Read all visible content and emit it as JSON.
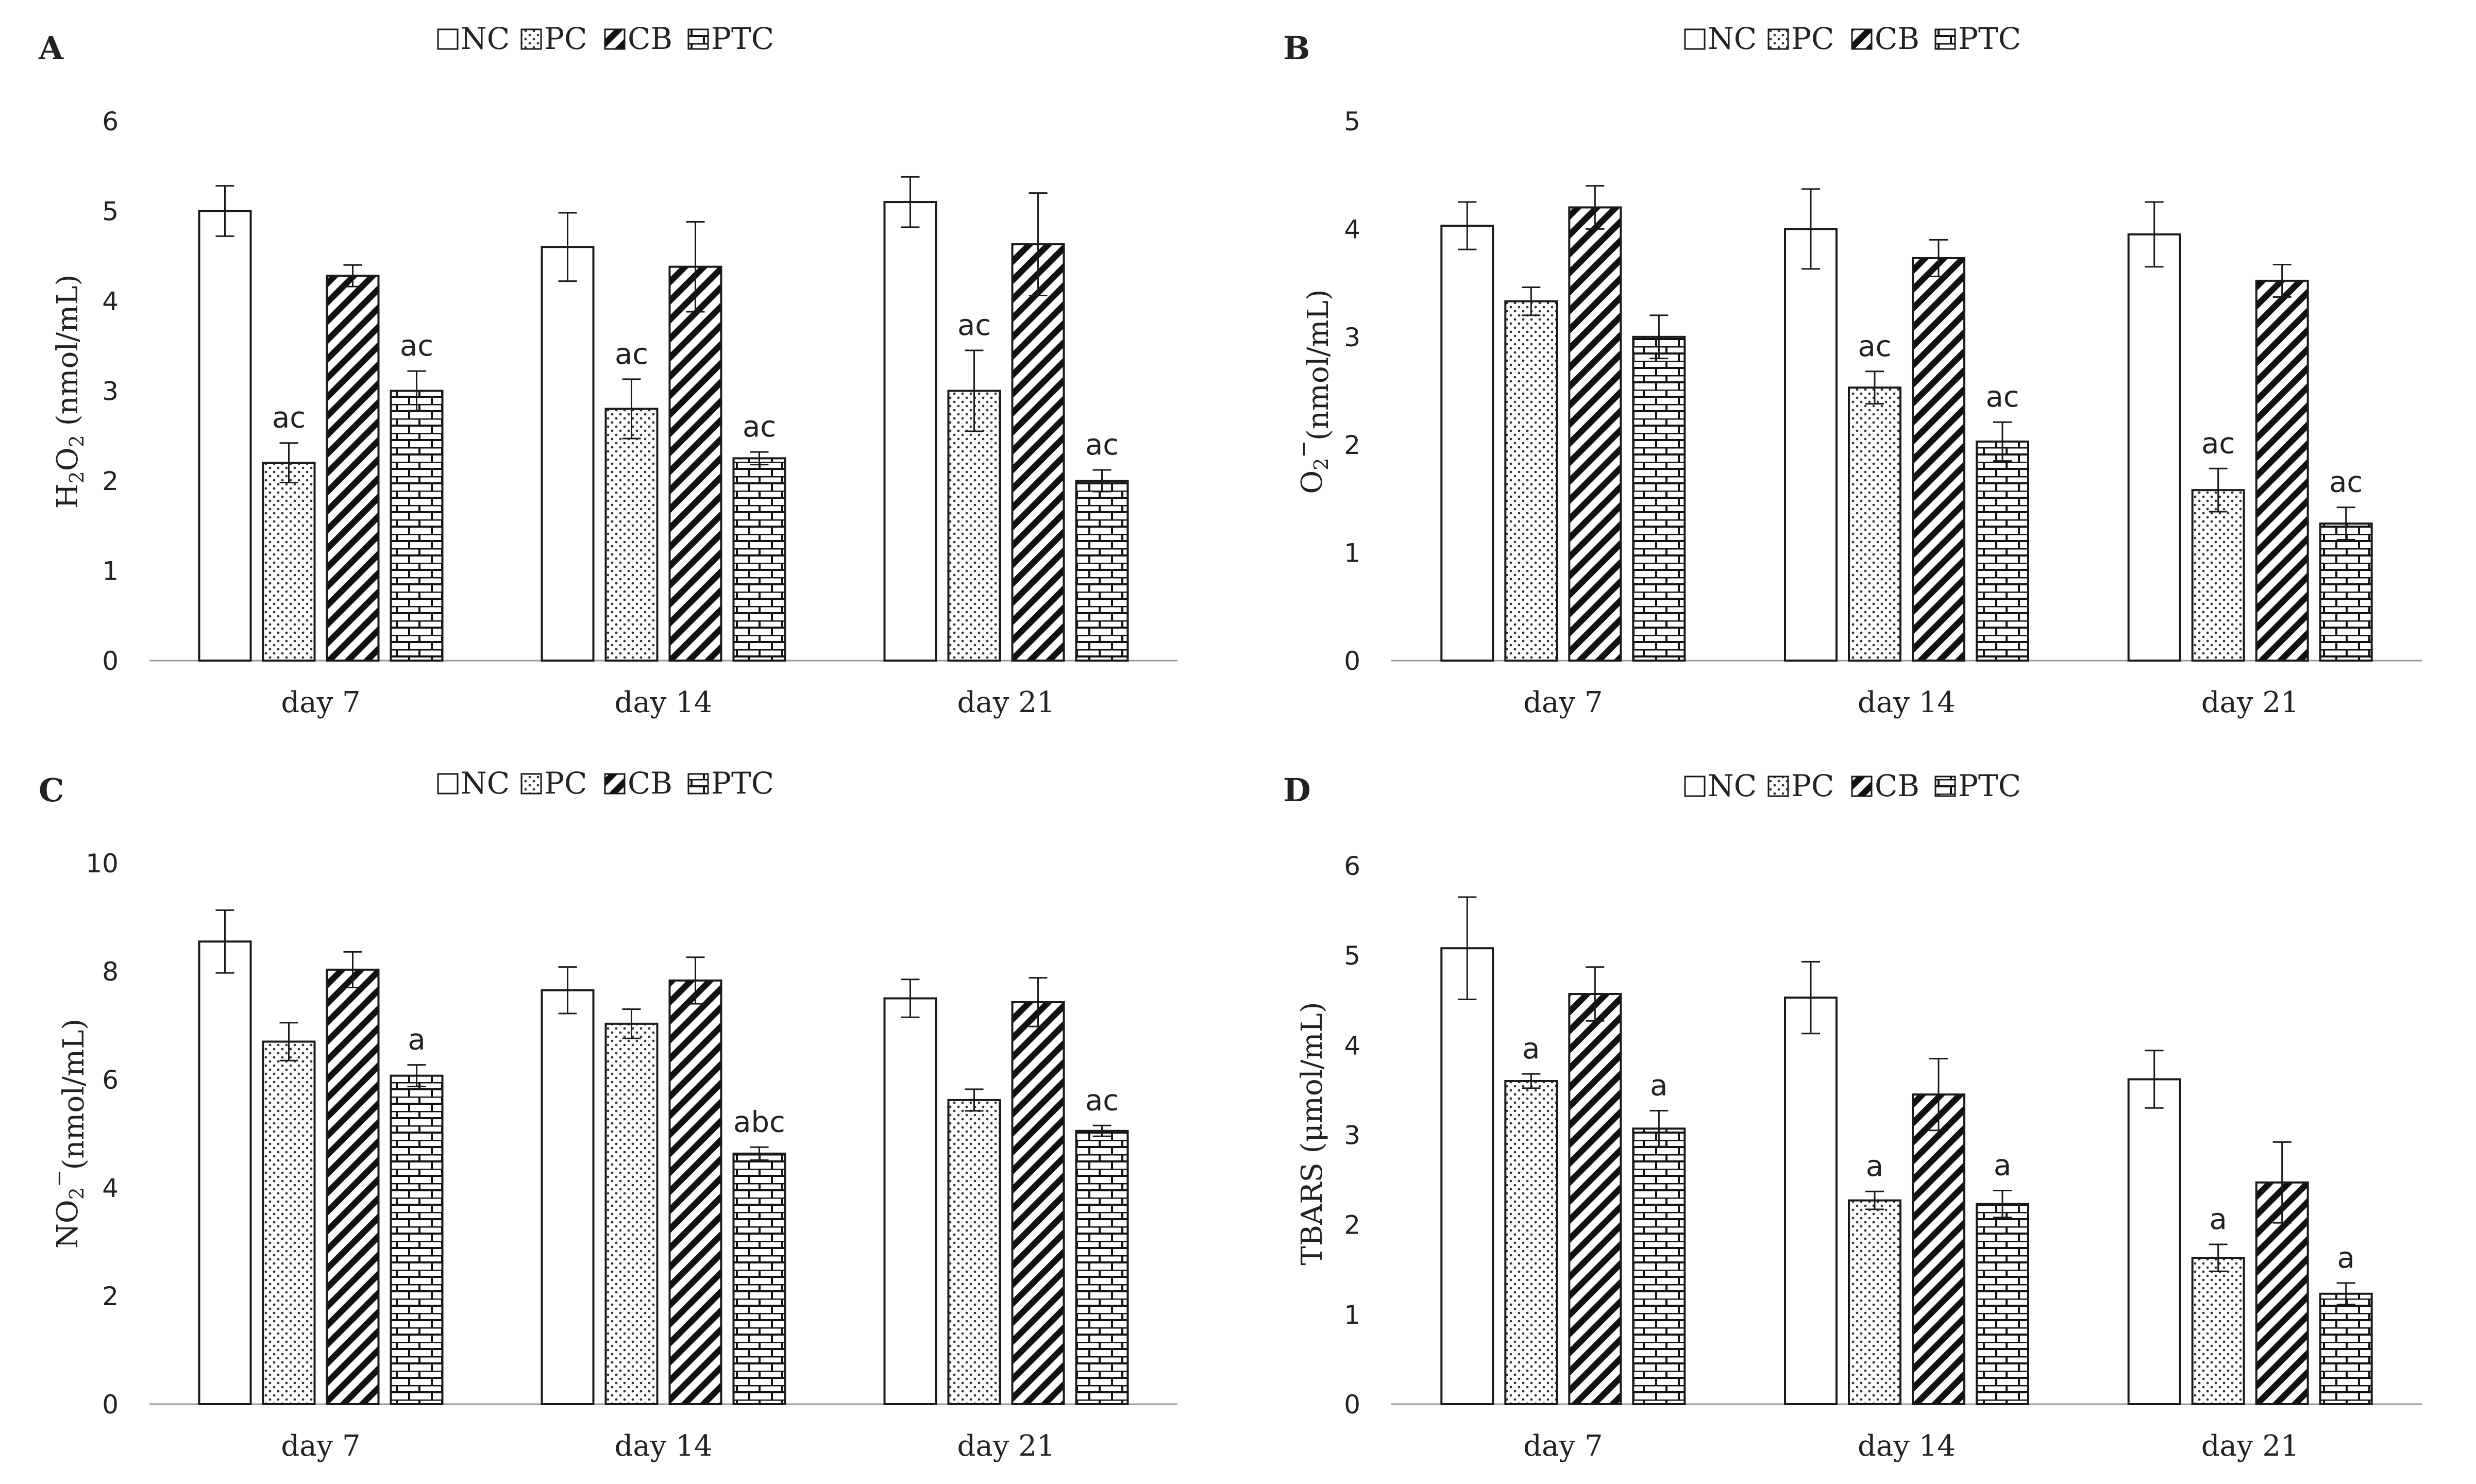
{
  "legend": [
    {
      "key": "NC",
      "label": "NC",
      "pattern": "none"
    },
    {
      "key": "PC",
      "label": "PC",
      "pattern": "dots"
    },
    {
      "key": "CB",
      "label": "CB",
      "pattern": "diagonal"
    },
    {
      "key": "PTC",
      "label": "PTC",
      "pattern": "brick"
    }
  ],
  "colors": {
    "stroke": "#1a1a1a",
    "axis": "#9a9a9a",
    "background": "#ffffff"
  },
  "chart_data": [
    {
      "panel": "A",
      "type": "bar",
      "ylabel": "H2O2 (nmol/mL)",
      "ylabel_parts": [
        "H",
        "2",
        "O",
        "2",
        " (nmol/mL)"
      ],
      "ylim": [
        0,
        6
      ],
      "yticks": [
        0,
        1,
        2,
        3,
        4,
        5,
        6
      ],
      "categories": [
        "day 7",
        "day 14",
        "day 21"
      ],
      "series": [
        {
          "name": "NC",
          "values": [
            5.0,
            4.6,
            5.1
          ],
          "errors": [
            0.28,
            0.38,
            0.28
          ]
        },
        {
          "name": "PC",
          "values": [
            2.2,
            2.8,
            3.0
          ],
          "errors": [
            0.22,
            0.33,
            0.45
          ]
        },
        {
          "name": "CB",
          "values": [
            4.28,
            4.38,
            4.63
          ],
          "errors": [
            0.12,
            0.5,
            0.57
          ]
        },
        {
          "name": "PTC",
          "values": [
            3.0,
            2.25,
            2.0
          ],
          "errors": [
            0.22,
            0.07,
            0.12
          ]
        }
      ],
      "annotations": [
        {
          "category": 0,
          "series": "PC",
          "text": "ac"
        },
        {
          "category": 0,
          "series": "PTC",
          "text": "ac"
        },
        {
          "category": 1,
          "series": "PC",
          "text": "ac"
        },
        {
          "category": 1,
          "series": "PTC",
          "text": "ac"
        },
        {
          "category": 2,
          "series": "PC",
          "text": "ac"
        },
        {
          "category": 2,
          "series": "PTC",
          "text": "ac"
        }
      ]
    },
    {
      "panel": "B",
      "type": "bar",
      "ylabel": "O2−(nmol/mL)",
      "ylabel_parts": [
        "O",
        "2",
        "−",
        "(nmol/mL)"
      ],
      "ylim": [
        0,
        5
      ],
      "yticks": [
        0,
        1,
        2,
        3,
        4,
        5
      ],
      "categories": [
        "day 7",
        "day 14",
        "day 21"
      ],
      "series": [
        {
          "name": "NC",
          "values": [
            4.03,
            4.0,
            3.95
          ],
          "errors": [
            0.22,
            0.37,
            0.3
          ]
        },
        {
          "name": "PC",
          "values": [
            3.33,
            2.53,
            1.58
          ],
          "errors": [
            0.13,
            0.15,
            0.2
          ]
        },
        {
          "name": "CB",
          "values": [
            4.2,
            3.73,
            3.52
          ],
          "errors": [
            0.2,
            0.17,
            0.15
          ]
        },
        {
          "name": "PTC",
          "values": [
            3.0,
            2.03,
            1.27
          ],
          "errors": [
            0.2,
            0.18,
            0.15
          ]
        }
      ],
      "annotations": [
        {
          "category": 1,
          "series": "PC",
          "text": "ac"
        },
        {
          "category": 1,
          "series": "PTC",
          "text": "ac"
        },
        {
          "category": 2,
          "series": "PC",
          "text": "ac"
        },
        {
          "category": 2,
          "series": "PTC",
          "text": "ac"
        }
      ]
    },
    {
      "panel": "C",
      "type": "bar",
      "ylabel": "NO2−(nmol/mL)",
      "ylabel_parts": [
        "NO",
        "2",
        "−",
        "(nmol/mL)"
      ],
      "ylim": [
        0,
        10
      ],
      "yticks": [
        0,
        2,
        4,
        6,
        8,
        10
      ],
      "categories": [
        "day 7",
        "day 14",
        "day 21"
      ],
      "series": [
        {
          "name": "NC",
          "values": [
            8.55,
            7.65,
            7.5
          ],
          "errors": [
            0.58,
            0.43,
            0.35
          ]
        },
        {
          "name": "PC",
          "values": [
            6.7,
            7.03,
            5.62
          ],
          "errors": [
            0.35,
            0.27,
            0.2
          ]
        },
        {
          "name": "CB",
          "values": [
            8.03,
            7.83,
            7.43
          ],
          "errors": [
            0.33,
            0.43,
            0.45
          ]
        },
        {
          "name": "PTC",
          "values": [
            6.07,
            4.63,
            5.05
          ],
          "errors": [
            0.2,
            0.12,
            0.1
          ]
        }
      ],
      "annotations": [
        {
          "category": 0,
          "series": "PTC",
          "text": "a"
        },
        {
          "category": 1,
          "series": "PTC",
          "text": "abc"
        },
        {
          "category": 2,
          "series": "PTC",
          "text": "ac"
        }
      ]
    },
    {
      "panel": "D",
      "type": "bar",
      "ylabel": "TBARS (μmol/mL)",
      "ylabel_parts": [
        "TBARS (μmol/mL)"
      ],
      "ylim": [
        0,
        6
      ],
      "yticks": [
        0,
        1,
        2,
        3,
        4,
        5,
        6
      ],
      "categories": [
        "day 7",
        "day 14",
        "day 21"
      ],
      "series": [
        {
          "name": "NC",
          "values": [
            5.08,
            4.53,
            3.62
          ],
          "errors": [
            0.57,
            0.4,
            0.32
          ]
        },
        {
          "name": "PC",
          "values": [
            3.6,
            2.27,
            1.63
          ],
          "errors": [
            0.08,
            0.1,
            0.15
          ]
        },
        {
          "name": "CB",
          "values": [
            4.57,
            3.45,
            2.47
          ],
          "errors": [
            0.3,
            0.4,
            0.45
          ]
        },
        {
          "name": "PTC",
          "values": [
            3.07,
            2.23,
            1.23
          ],
          "errors": [
            0.2,
            0.15,
            0.12
          ]
        }
      ],
      "annotations": [
        {
          "category": 0,
          "series": "PC",
          "text": "a"
        },
        {
          "category": 0,
          "series": "PTC",
          "text": "a"
        },
        {
          "category": 1,
          "series": "PC",
          "text": "a"
        },
        {
          "category": 1,
          "series": "PTC",
          "text": "a"
        },
        {
          "category": 2,
          "series": "PC",
          "text": "a"
        },
        {
          "category": 2,
          "series": "PTC",
          "text": "a"
        }
      ]
    }
  ]
}
